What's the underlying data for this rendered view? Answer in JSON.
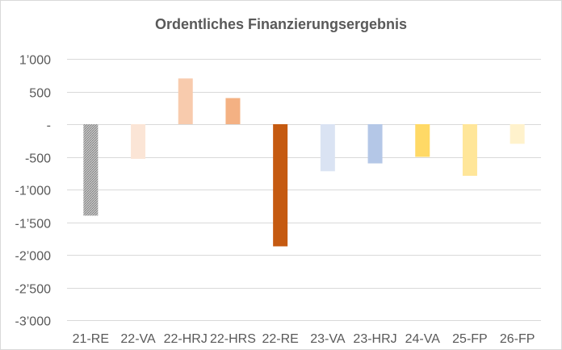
{
  "chart_data": {
    "type": "bar",
    "title": "Ordentliches Finanzierungsergebnis",
    "categories": [
      "21-RE",
      "22-VA",
      "22-HRJ",
      "22-HRS",
      "22-RE",
      "23-VA",
      "23-HRJ",
      "24-VA",
      "25-FP",
      "26-FP"
    ],
    "values": [
      -1400,
      -530,
      700,
      400,
      -1870,
      -720,
      -600,
      -500,
      -790,
      -300
    ],
    "bar_colors": [
      "#a6a6a6",
      "#fbe5d6",
      "#f8cbad",
      "#f4b183",
      "#c55a11",
      "#dae3f3",
      "#b4c7e7",
      "#ffd966",
      "#ffe699",
      "#fff2cc"
    ],
    "bar_patterns": [
      "dotted",
      "",
      "",
      "",
      "",
      "",
      "",
      "",
      "",
      ""
    ],
    "ylim": [
      -3000,
      1000
    ],
    "yticks": [
      {
        "value": 1000,
        "label": "1’000"
      },
      {
        "value": 500,
        "label": "500"
      },
      {
        "value": 0,
        "label": "-"
      },
      {
        "value": -500,
        "label": "-500"
      },
      {
        "value": -1000,
        "label": "-1’000"
      },
      {
        "value": -1500,
        "label": "-1’500"
      },
      {
        "value": -2000,
        "label": "-2’000"
      },
      {
        "value": -2500,
        "label": "-2’500"
      },
      {
        "value": -3000,
        "label": "-3’000"
      }
    ],
    "xlabel": "",
    "ylabel": "",
    "grid": true,
    "legend": "none"
  }
}
